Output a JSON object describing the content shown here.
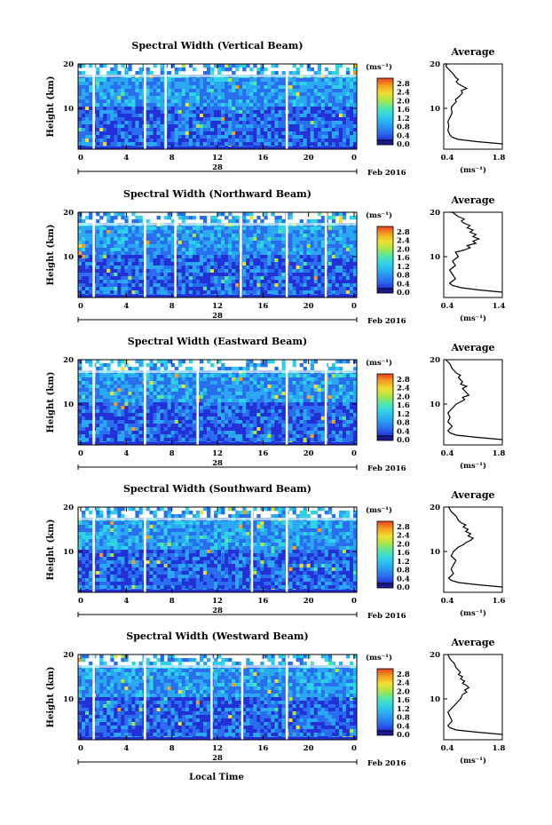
{
  "xlabel": "Local Time",
  "colors": {
    "colormap": [
      "#1a1a8c",
      "#2330d8",
      "#2a6ef0",
      "#2aa8f2",
      "#2fd3e8",
      "#52e6a8",
      "#a8e64a",
      "#f0e030",
      "#f5a020",
      "#e84020",
      "#b81010"
    ],
    "white_gap": "#ffffff",
    "line": "#000000"
  },
  "chart_data": [
    {
      "type": "heatmap",
      "title": "Spectral Width (Vertical Beam)",
      "ylabel": "Height (km)",
      "yticks": [
        "20",
        "10"
      ],
      "xticks": [
        "0",
        "4",
        "8",
        "12",
        "16",
        "20",
        "0"
      ],
      "date_day": "28",
      "date_month_year": "Feb 2016",
      "colorbar": {
        "unit": "(ms⁻¹)",
        "ticks": [
          "2.8",
          "2.4",
          "2.0",
          "1.6",
          "1.2",
          "0.8",
          "0.4",
          "0.0"
        ]
      },
      "profile": {
        "title": "Average",
        "xlabel": "(ms⁻¹)",
        "xticks": [
          "0.4",
          "1.8"
        ],
        "xlim": [
          0.4,
          1.8
        ],
        "yticks": [
          "20",
          "10"
        ],
        "x": [
          1.8,
          1.2,
          0.75,
          0.6,
          0.55,
          0.5,
          0.52,
          0.5,
          0.55,
          0.6,
          0.58,
          0.6,
          0.65,
          0.7,
          0.68,
          0.75,
          0.8,
          0.85,
          0.82,
          0.95,
          0.85,
          0.75,
          0.7,
          0.75,
          0.68,
          0.65,
          0.6,
          0.55,
          0.5,
          0.45,
          0.48,
          0.42,
          0.45
        ],
        "y": [
          2,
          2.5,
          3,
          3.5,
          4,
          5,
          6,
          7,
          8,
          9,
          10,
          10.5,
          11,
          11.5,
          12,
          12.5,
          13,
          13.5,
          14,
          14.5,
          15,
          15.5,
          16,
          16.5,
          17,
          17.5,
          18,
          18.5,
          19,
          19.5,
          20,
          20.5,
          21
        ]
      }
    },
    {
      "type": "heatmap",
      "title": "Spectral Width (Northward Beam)",
      "ylabel": "Height (km)",
      "yticks": [
        "20",
        "10"
      ],
      "xticks": [
        "0",
        "4",
        "8",
        "12",
        "16",
        "20",
        "0"
      ],
      "date_day": "28",
      "date_month_year": "Feb 2016",
      "colorbar": {
        "unit": "(ms⁻¹)",
        "ticks": [
          "2.8",
          "2.4",
          "2.0",
          "1.6",
          "1.2",
          "0.8",
          "0.4",
          "0.0"
        ]
      },
      "profile": {
        "title": "Average",
        "xlabel": "(ms⁻¹)",
        "xticks": [
          "0.4",
          "1.4"
        ],
        "xlim": [
          0.4,
          1.4
        ],
        "yticks": [
          "20",
          "10"
        ],
        "x": [
          1.4,
          1.0,
          0.7,
          0.55,
          0.5,
          0.6,
          0.55,
          0.5,
          0.6,
          0.55,
          0.65,
          0.6,
          0.75,
          0.85,
          0.8,
          0.95,
          0.9,
          1.0,
          0.9,
          0.95,
          0.85,
          0.9,
          0.8,
          0.85,
          0.75,
          0.7,
          0.75,
          0.65,
          0.6,
          0.55,
          0.5
        ],
        "y": [
          2,
          2.5,
          3,
          3.5,
          4,
          5,
          6,
          7,
          8,
          9,
          10,
          11,
          11.5,
          12,
          12.5,
          13,
          13.5,
          14,
          14.5,
          15,
          15.5,
          16,
          16.5,
          17,
          17.5,
          18,
          18.5,
          19,
          19.5,
          20,
          20.5
        ]
      }
    },
    {
      "type": "heatmap",
      "title": "Spectral Width (Eastward Beam)",
      "ylabel": "Height (km)",
      "yticks": [
        "20",
        "10"
      ],
      "xticks": [
        "0",
        "4",
        "8",
        "12",
        "16",
        "20",
        "0"
      ],
      "date_day": "28",
      "date_month_year": "Feb 2016",
      "colorbar": {
        "unit": "(ms⁻¹)",
        "ticks": [
          "2.8",
          "2.4",
          "2.0",
          "1.6",
          "1.2",
          "0.8",
          "0.4",
          "0.0"
        ]
      },
      "profile": {
        "title": "Average",
        "xlabel": "(ms⁻¹)",
        "xticks": [
          "0.4",
          "1.8"
        ],
        "xlim": [
          0.4,
          1.8
        ],
        "yticks": [
          "20",
          "10"
        ],
        "x": [
          1.8,
          1.2,
          0.7,
          0.55,
          0.5,
          0.6,
          0.5,
          0.55,
          0.5,
          0.6,
          0.7,
          0.8,
          0.9,
          0.85,
          1.0,
          0.95,
          0.9,
          0.85,
          0.95,
          0.8,
          0.85,
          0.75,
          0.8,
          0.7,
          0.65,
          0.6,
          0.55,
          0.5,
          0.45
        ],
        "y": [
          2,
          2.5,
          3,
          3.5,
          4,
          5,
          6,
          7,
          8,
          9,
          10,
          10.5,
          11,
          11.5,
          12,
          12.5,
          13,
          13.5,
          14,
          14.5,
          15,
          16,
          16.5,
          17,
          17.5,
          18,
          19,
          19.5,
          20
        ]
      }
    },
    {
      "type": "heatmap",
      "title": "Spectral Width (Southward Beam)",
      "ylabel": "Height (km)",
      "yticks": [
        "20",
        "10"
      ],
      "xticks": [
        "0",
        "4",
        "8",
        "12",
        "16",
        "20",
        "0"
      ],
      "date_day": "28",
      "date_month_year": "Feb 2016",
      "colorbar": {
        "unit": "(ms⁻¹)",
        "ticks": [
          "2.8",
          "2.4",
          "2.0",
          "1.6",
          "1.2",
          "0.8",
          "0.4",
          "0.0"
        ]
      },
      "profile": {
        "title": "Average",
        "xlabel": "(ms⁻¹)",
        "xticks": [
          "0.4",
          "1.6"
        ],
        "xlim": [
          0.4,
          1.6
        ],
        "yticks": [
          "20",
          "10"
        ],
        "x": [
          1.6,
          1.1,
          0.7,
          0.55,
          0.5,
          0.6,
          0.55,
          0.6,
          0.65,
          0.55,
          0.6,
          0.7,
          0.8,
          0.85,
          0.95,
          1.0,
          0.9,
          0.95,
          0.85,
          0.9,
          0.8,
          0.85,
          0.75,
          0.7,
          0.65,
          0.6,
          0.55,
          0.5
        ],
        "y": [
          2,
          2.5,
          3,
          3.5,
          4,
          5,
          6,
          7,
          8,
          9,
          10,
          11,
          11.5,
          12,
          12.5,
          13,
          13.5,
          14,
          14.5,
          15,
          15.5,
          16,
          16.5,
          17,
          18,
          18.5,
          19,
          20
        ]
      }
    },
    {
      "type": "heatmap",
      "title": "Spectral Width (Westward Beam)",
      "ylabel": "Height (km)",
      "yticks": [
        "20",
        "10"
      ],
      "xticks": [
        "0",
        "4",
        "8",
        "12",
        "16",
        "20",
        "0"
      ],
      "date_day": "28",
      "date_month_year": "Feb 2016",
      "colorbar": {
        "unit": "(ms⁻¹)",
        "ticks": [
          "2.8",
          "2.4",
          "2.0",
          "1.6",
          "1.2",
          "0.8",
          "0.4",
          "0.0"
        ]
      },
      "profile": {
        "title": "Average",
        "xlabel": "(ms⁻¹)",
        "xticks": [
          "0.4",
          "1.8"
        ],
        "xlim": [
          0.4,
          1.8
        ],
        "yticks": [
          "20",
          "10"
        ],
        "x": [
          1.8,
          1.2,
          0.7,
          0.55,
          0.5,
          0.6,
          0.55,
          0.5,
          0.6,
          0.7,
          0.8,
          0.85,
          0.95,
          0.9,
          1.0,
          0.95,
          0.85,
          0.9,
          0.8,
          0.85,
          0.75,
          0.8,
          0.7,
          0.65,
          0.6,
          0.55,
          0.5
        ],
        "y": [
          2,
          2.5,
          3,
          3.5,
          4,
          5,
          6,
          7,
          8,
          9,
          10,
          11,
          11.5,
          12,
          12.5,
          13,
          13.5,
          14,
          14.5,
          15,
          15.5,
          16,
          17,
          18,
          18.5,
          19,
          20
        ]
      }
    }
  ]
}
